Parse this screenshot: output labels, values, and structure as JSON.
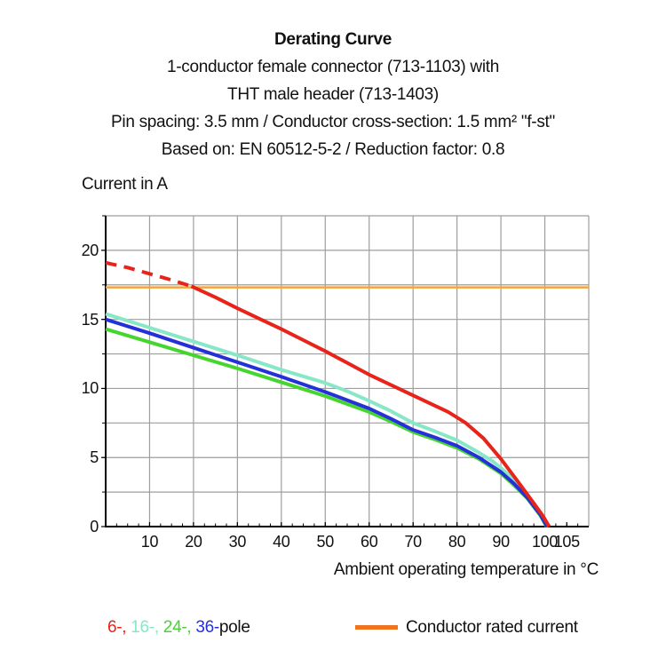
{
  "header": {
    "title": "Derating Curve",
    "subtitle_lines": [
      "1-conductor female connector (713-1103) with",
      "THT male header (713-1403)",
      "Pin spacing: 3.5 mm / Conductor cross-section: 1.5 mm² \"f-st\"",
      "Based on: EN 60512-5-2 / Reduction factor: 0.8"
    ]
  },
  "chart_data": {
    "type": "line",
    "title": "Derating Curve",
    "ylabel": "Current in A",
    "xlabel": "Ambient operating temperature in °C",
    "xlim": [
      0,
      110
    ],
    "ylim": [
      0,
      22.5
    ],
    "grid": true,
    "grid_color": "#9e9e9e",
    "axis_color": "#000000",
    "x_gridlines": [
      10,
      20,
      30,
      40,
      50,
      60,
      70,
      80,
      90,
      100,
      110
    ],
    "y_gridlines": [
      2.5,
      5,
      7.5,
      10,
      12.5,
      15,
      17.5,
      20,
      22.5
    ],
    "x_tick_labels": [
      {
        "value": 10,
        "label": "10"
      },
      {
        "value": 20,
        "label": "20"
      },
      {
        "value": 30,
        "label": "30"
      },
      {
        "value": 40,
        "label": "40"
      },
      {
        "value": 50,
        "label": "50"
      },
      {
        "value": 60,
        "label": "60"
      },
      {
        "value": 70,
        "label": "70"
      },
      {
        "value": 80,
        "label": "80"
      },
      {
        "value": 90,
        "label": "90"
      },
      {
        "value": 100,
        "label": "100"
      },
      {
        "value": 105,
        "label": "105"
      }
    ],
    "y_tick_labels": [
      {
        "value": 0,
        "label": "0"
      },
      {
        "value": 5,
        "label": "5"
      },
      {
        "value": 10,
        "label": "10"
      },
      {
        "value": 15,
        "label": "15"
      },
      {
        "value": 20,
        "label": "20"
      }
    ],
    "x_minor_tick_step": 2.5,
    "y_minor_tick_step": 2.5,
    "series": [
      {
        "name": "Conductor rated current",
        "color": "#f5a43b",
        "width": 2.5,
        "points": [
          [
            0,
            17.32
          ],
          [
            110,
            17.32
          ]
        ]
      },
      {
        "name": "16-pole",
        "color": "#87e7c6",
        "width": 4,
        "points": [
          [
            0,
            15.4
          ],
          [
            10,
            14.4
          ],
          [
            20,
            13.4
          ],
          [
            30,
            12.4
          ],
          [
            40,
            11.35
          ],
          [
            50,
            10.4
          ],
          [
            55,
            9.8
          ],
          [
            60,
            9.1
          ],
          [
            65,
            8.35
          ],
          [
            70,
            7.5
          ],
          [
            75,
            6.9
          ],
          [
            80,
            6.25
          ],
          [
            85,
            5.35
          ],
          [
            88,
            4.75
          ],
          [
            90,
            4.25
          ],
          [
            93,
            3.4
          ],
          [
            96,
            2.3
          ],
          [
            99,
            1.0
          ],
          [
            100.8,
            0
          ]
        ]
      },
      {
        "name": "24-pole",
        "color": "#45d52f",
        "width": 4,
        "points": [
          [
            0,
            14.3
          ],
          [
            10,
            13.35
          ],
          [
            20,
            12.4
          ],
          [
            30,
            11.45
          ],
          [
            40,
            10.45
          ],
          [
            50,
            9.45
          ],
          [
            60,
            8.3
          ],
          [
            65,
            7.6
          ],
          [
            70,
            6.85
          ],
          [
            75,
            6.3
          ],
          [
            80,
            5.7
          ],
          [
            85,
            4.9
          ],
          [
            90,
            3.85
          ],
          [
            93,
            3.0
          ],
          [
            96,
            2.05
          ],
          [
            99,
            0.8
          ],
          [
            100.4,
            0
          ]
        ]
      },
      {
        "name": "36-pole",
        "color": "#2430d8",
        "width": 4,
        "points": [
          [
            0,
            15.0
          ],
          [
            10,
            14.0
          ],
          [
            20,
            12.95
          ],
          [
            30,
            11.9
          ],
          [
            40,
            10.85
          ],
          [
            50,
            9.75
          ],
          [
            60,
            8.55
          ],
          [
            65,
            7.8
          ],
          [
            70,
            7.0
          ],
          [
            75,
            6.45
          ],
          [
            80,
            5.85
          ],
          [
            85,
            5.0
          ],
          [
            90,
            3.95
          ],
          [
            93,
            3.1
          ],
          [
            96,
            2.1
          ],
          [
            99,
            0.85
          ],
          [
            100.5,
            0
          ]
        ]
      },
      {
        "name": "6-pole",
        "color": "#e8231a",
        "width": 4,
        "dash_until_x": 19.5,
        "dash_pattern": "12.5 8.5",
        "points": [
          [
            0,
            19.1
          ],
          [
            5,
            18.75
          ],
          [
            10,
            18.3
          ],
          [
            15,
            17.85
          ],
          [
            19.5,
            17.4
          ],
          [
            25,
            16.6
          ],
          [
            30,
            15.8
          ],
          [
            35,
            15.05
          ],
          [
            40,
            14.3
          ],
          [
            45,
            13.5
          ],
          [
            50,
            12.7
          ],
          [
            55,
            11.85
          ],
          [
            60,
            11.0
          ],
          [
            66,
            10.1
          ],
          [
            72,
            9.2
          ],
          [
            78,
            8.3
          ],
          [
            82,
            7.5
          ],
          [
            86,
            6.4
          ],
          [
            90,
            4.9
          ],
          [
            94,
            3.2
          ],
          [
            97,
            1.9
          ],
          [
            99.5,
            0.8
          ],
          [
            101,
            0
          ]
        ]
      }
    ]
  },
  "legend": {
    "pole_items": [
      {
        "label": "6-,",
        "color": "#e8231a"
      },
      {
        "label": "16-,",
        "color": "#87e7c6"
      },
      {
        "label": "24-,",
        "color": "#45d52f"
      },
      {
        "label": "36-",
        "color": "#2430d8"
      }
    ],
    "suffix": "pole",
    "rated": {
      "label": "Conductor rated current",
      "swatch_color": "#ee7420"
    }
  }
}
